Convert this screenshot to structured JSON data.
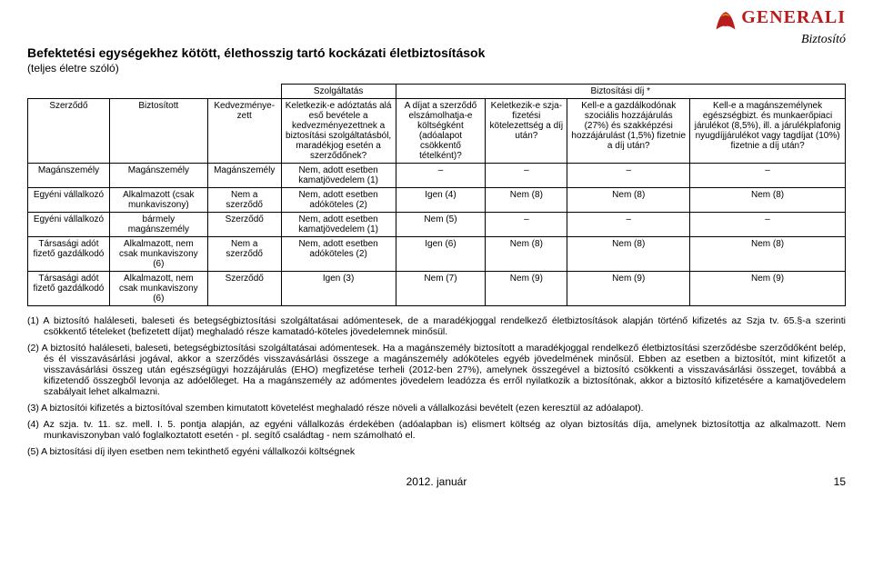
{
  "logo": {
    "name": "GENERALI",
    "sub": "Biztosító"
  },
  "title": "Befektetési egységekhez kötött, élethosszig tartó kockázati életbiztosítások",
  "subtitle": "(teljes életre szóló)",
  "groupHeaders": {
    "g1": "",
    "g2": "Szolgáltatás",
    "g3": "Biztosítási díj *"
  },
  "headers": {
    "c0": "Szerződő",
    "c1": "Biztosított",
    "c2": "Kedvezménye­zett",
    "c3": "Keletkezik-e adóztatás alá eső bevétele a kedvezményezettnek a biztosítási szolgáltatásból, maradékjog esetén a szerződőnek?",
    "c4": "A díjat a szerződő elszámolhatja-e költségként (adóalapot csökkentő tételként)?",
    "c5": "Keletkezik-e szja-fizetési kötelezettség a díj után?",
    "c6": "Kell-e a gazdálkodónak szociális hozzájárulás (27%) és szakképzési hozzájárulást (1,5%) fizetnie a díj után?",
    "c7": "Kell-e a magánszemélynek egészségbizt. és munkaerőpiaci járulékot (8,5%), ill. a járulék­plafonig nyugdíjjárulékot vagy tagdíjat (10%) fizetnie a díj után?"
  },
  "rows": [
    {
      "c0": "Magánszemély",
      "c1": "Magánszemély",
      "c2": "Magánszemély",
      "c3": "Nem, adott esetben kamatjövedelem (1)",
      "c4": "–",
      "c5": "–",
      "c6": "–",
      "c7": "–"
    },
    {
      "c0": "Egyéni vállalkozó",
      "c1": "Alkalmazott (csak munkaviszony)",
      "c2": "Nem a szerződő",
      "c3": "Nem, adott esetben adóköteles (2)",
      "c4": "Igen (4)",
      "c5": "Nem (8)",
      "c6": "Nem (8)",
      "c7": "Nem (8)"
    },
    {
      "c0": "Egyéni vállalkozó",
      "c1": "bármely magánszemély",
      "c2": "Szerződő",
      "c3": "Nem, adott esetben kamatjövedelem (1)",
      "c4": "Nem (5)",
      "c5": "–",
      "c6": "–",
      "c7": "–"
    },
    {
      "c0": "Társasági adót fizető gazdálkodó",
      "c1": "Alkalmazott, nem csak munkaviszony (6)",
      "c2": "Nem a szerződő",
      "c3": "Nem, adott esetben adóköteles (2)",
      "c4": "Igen (6)",
      "c5": "Nem (8)",
      "c6": "Nem (8)",
      "c7": "Nem (8)"
    },
    {
      "c0": "Társasági adót fizető gazdálkodó",
      "c1": "Alkalmazott, nem csak munkaviszony (6)",
      "c2": "Szerződő",
      "c3": "Igen (3)",
      "c4": "Nem (7)",
      "c5": "Nem (9)",
      "c6": "Nem (9)",
      "c7": "Nem (9)"
    }
  ],
  "notes": {
    "n1": "(1) A biztosító haláleseti, baleseti és betegségbiztosítási szolgáltatásai adómentesek, de a maradékjoggal rendelkező életbiztosítások alapján történő kifizetés az Szja tv. 65.§-a szerinti csökkentő tételeket (befizetett díjat) meghaladó része kamatadó-köteles jövedelemnek minősül.",
    "n2": "(2) A biztosító haláleseti, baleseti, betegségbiztosítási szolgáltatásai adómentesek. Ha a magánszemély biztosított a maradékjoggal rendelkező életbiztosítási szerződésbe szerződőként belép, és él visszavásárlási jogával, akkor a szerződés visszavásárlási összege a magánszemély adóköteles egyéb jövedelmének minősül. Ebben az esetben a biztosítót, mint kifizetőt a visszavásárlási összeg után egészségügyi hozzájárulás (EHO) megfizetése terheli (2012-ben 27%), amelynek összegével a biztosító csökkenti a visszavásárlási összeget, továbbá a kifizetendő összegből levonja az adóelőleget. Ha a magánszemély az adómentes jövedelem leadózza és erről nyilatkozik a biztosítónak, akkor a biztosító kifizetésére a kamatjövedelem szabályait lehet alkalmazni.",
    "n3": "(3) A biztosítói kifizetés a biztosítóval szemben kimutatott követelést meghaladó része növeli a vállalkozási bevételt (ezen keresztül az adóalapot).",
    "n4": "(4) Az szja. tv. 11. sz. mell. I. 5. pontja alapján, az egyéni vállalkozás érdekében (adóalapban is) elismert költség az olyan biztosítás díja, amelynek biztosítottja az alkalmazott. Nem munkaviszonyban való foglalkoztatott esetén - pl. segítő családtag - nem számolható el.",
    "n5": "(5) A biztosítási díj ilyen esetben nem tekinthető egyéni vállalkozói költségnek"
  },
  "footer": {
    "date": "2012. január",
    "page": "15"
  }
}
